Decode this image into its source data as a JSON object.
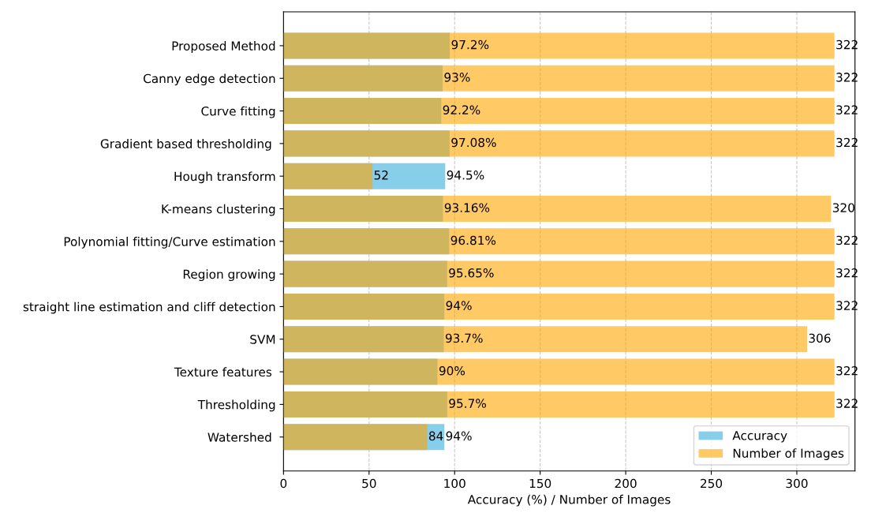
{
  "chart_data": {
    "type": "bar",
    "orientation": "horizontal",
    "xlabel": "Accuracy (%) / Number of Images",
    "categories": [
      "Proposed Method",
      "Canny edge detection",
      "Curve fitting",
      "Gradient based thresholding ",
      "Hough transform",
      "K-means clustering",
      "Polynomial fitting/Curve estimation",
      "Region growing",
      "straight line estimation and cliff detection",
      "SVM",
      "Texture features ",
      "Thresholding",
      "Watershed "
    ],
    "series": [
      {
        "name": "Accuracy",
        "color": "#87ceeb",
        "values": [
          97.2,
          93,
          92.2,
          97.08,
          94.5,
          93.16,
          96.81,
          95.65,
          94,
          93.7,
          90,
          95.7,
          94
        ],
        "value_labels": [
          "97.2%",
          "93%",
          "92.2%",
          "97.08%",
          "94.5%",
          "93.16%",
          "96.81%",
          "95.65%",
          "94%",
          "93.7%",
          "90%",
          "95.7%",
          "94%"
        ]
      },
      {
        "name": "Number of Images",
        "color": "#ffa500",
        "values": [
          322,
          322,
          322,
          322,
          52,
          320,
          322,
          322,
          322,
          306,
          322,
          322,
          84
        ],
        "value_labels": [
          "322",
          "322",
          "322",
          "322",
          "52",
          "320",
          "322",
          "322",
          "322",
          "306",
          "322",
          "322",
          "84"
        ]
      }
    ],
    "xlim": [
      0,
      334
    ],
    "xticks": [
      0,
      50,
      100,
      150,
      200,
      250,
      300
    ],
    "grid": "x",
    "legend": "bottom right"
  }
}
